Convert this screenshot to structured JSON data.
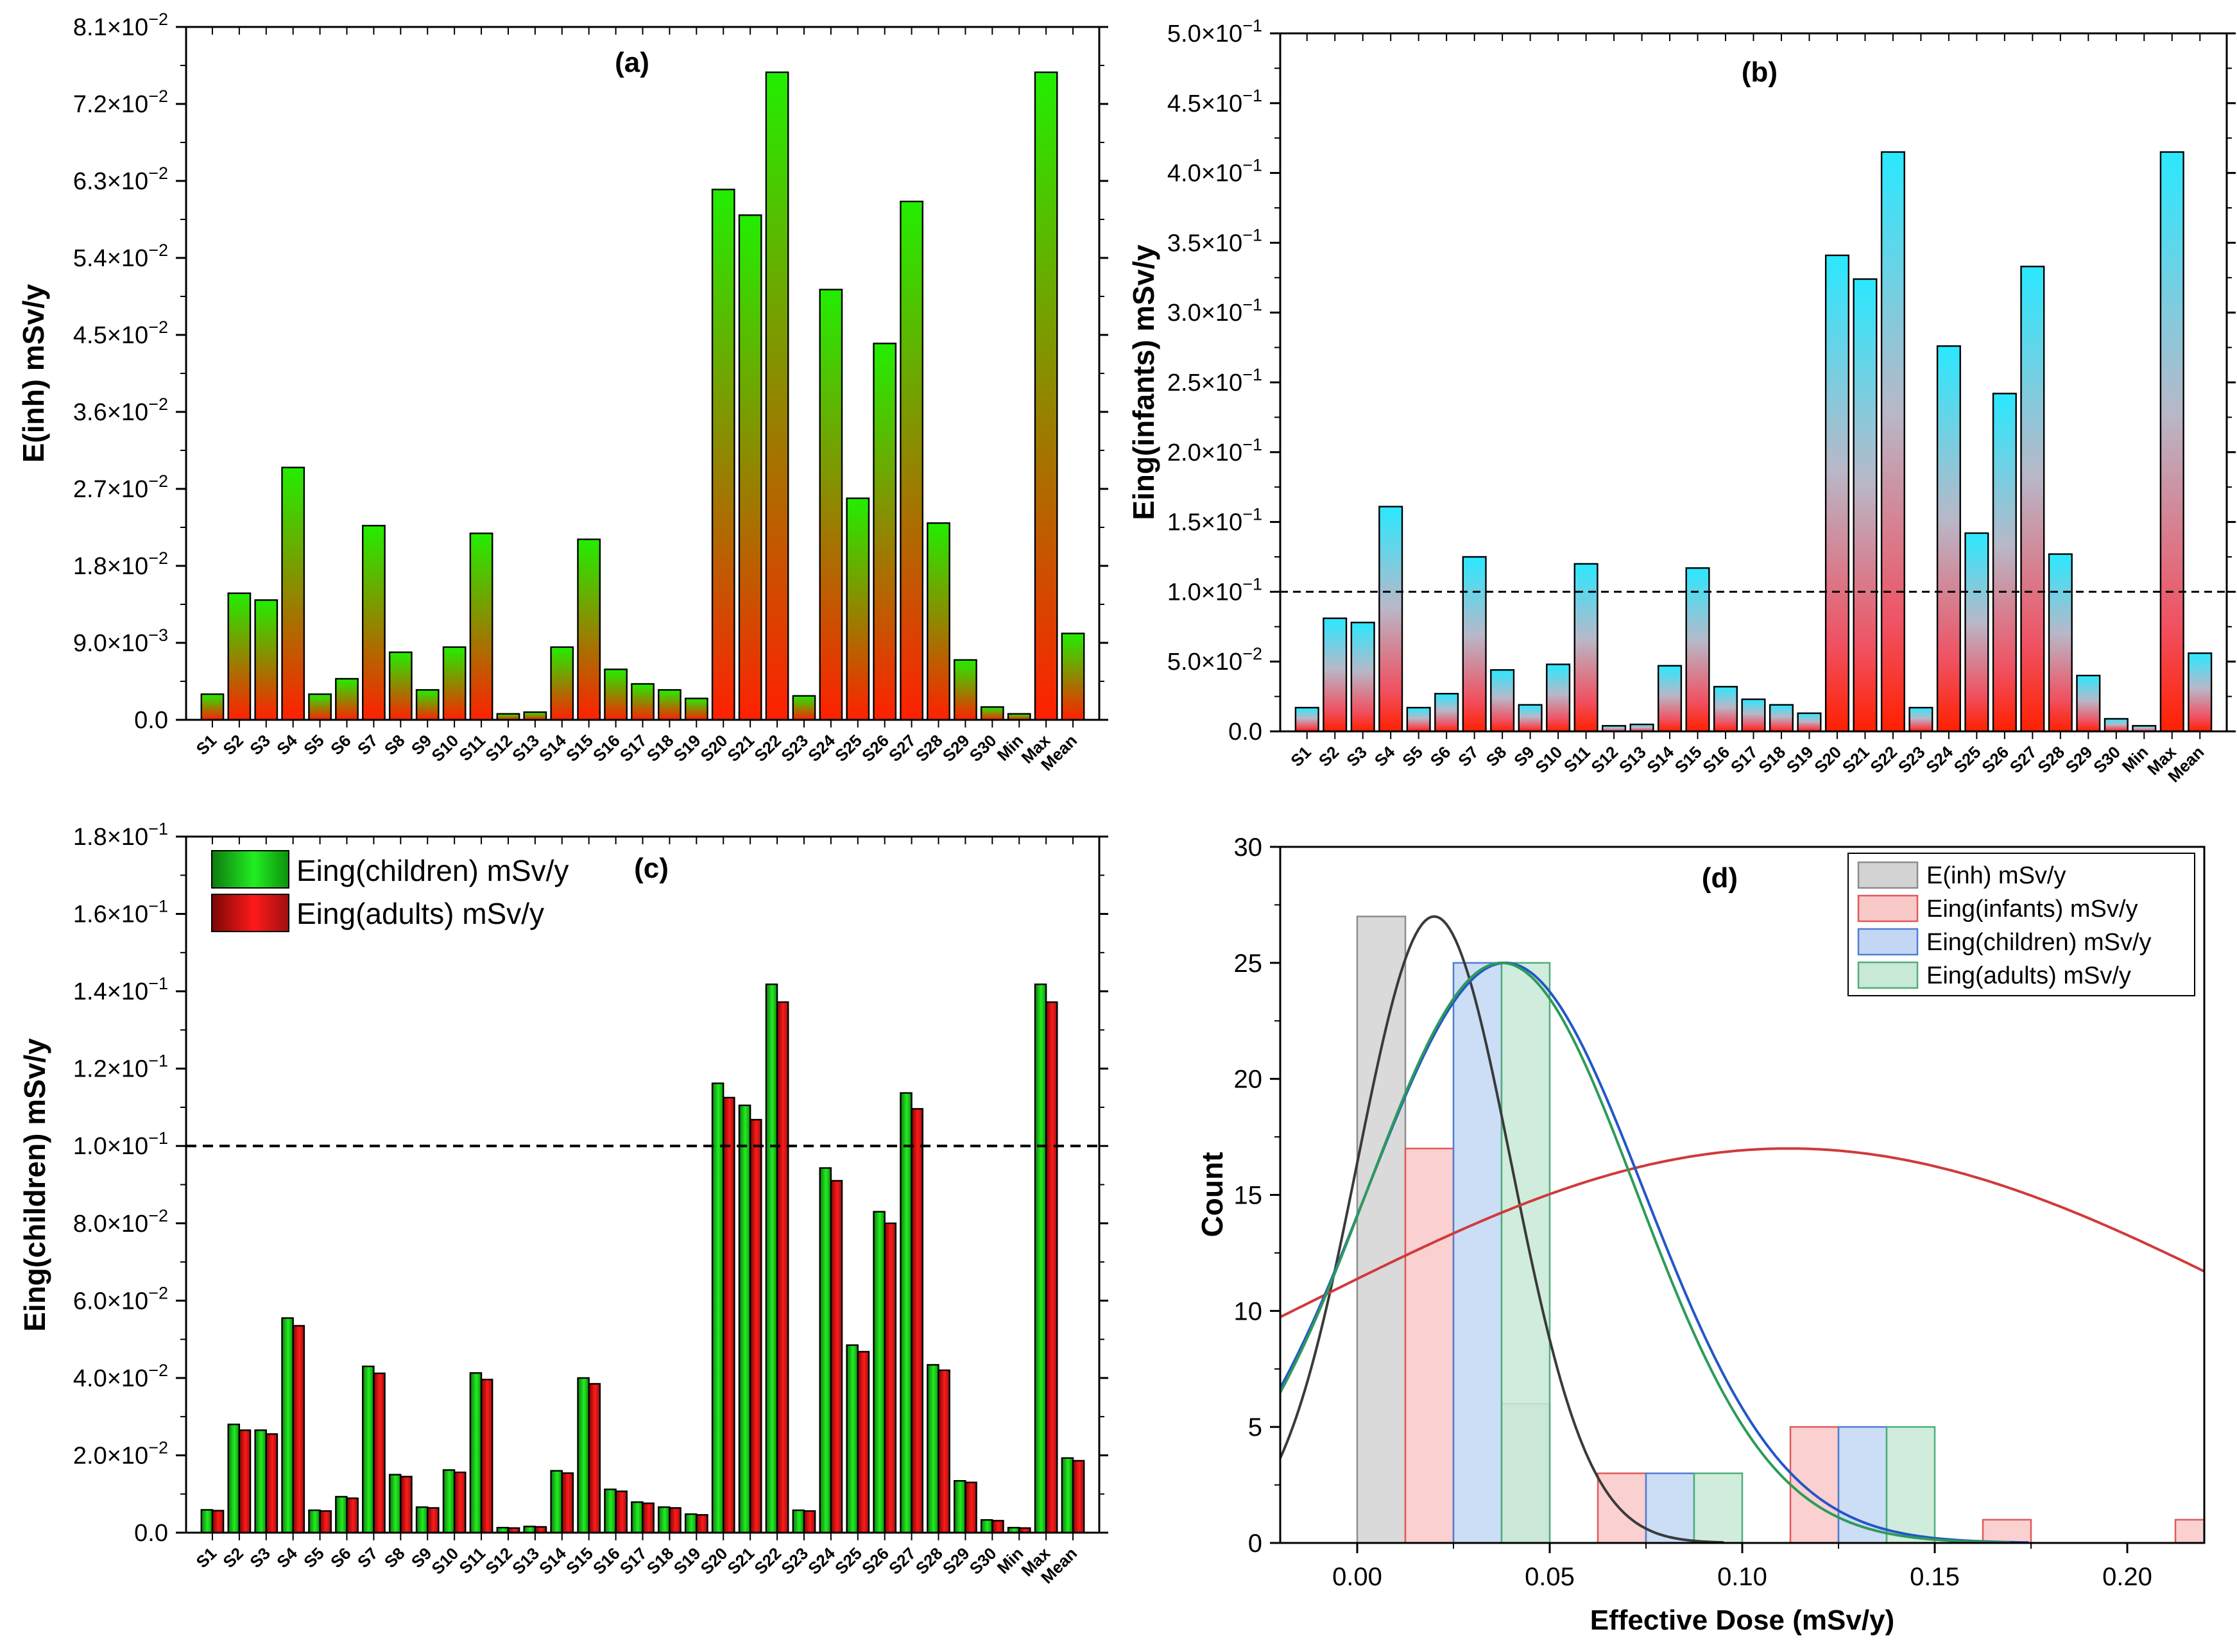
{
  "categories": [
    "S1",
    "S2",
    "S3",
    "S4",
    "S5",
    "S6",
    "S7",
    "S8",
    "S9",
    "S10",
    "S11",
    "S12",
    "S13",
    "S14",
    "S15",
    "S16",
    "S17",
    "S18",
    "S19",
    "S20",
    "S21",
    "S22",
    "S23",
    "S24",
    "S25",
    "S26",
    "S27",
    "S28",
    "S29",
    "S30",
    "Min",
    "Max",
    "Mean"
  ],
  "chart_data": [
    {
      "panel": "(a)",
      "type": "bar",
      "title": "(a)",
      "ylabel": "E(inh) mSv/y",
      "ylim": [
        0,
        0.081
      ],
      "yticks": [
        {
          "v": 0,
          "m": "0.0",
          "e": ""
        },
        {
          "v": 0.009,
          "m": "9.0×10",
          "e": "−3"
        },
        {
          "v": 0.018,
          "m": "1.8×10",
          "e": "−2"
        },
        {
          "v": 0.027,
          "m": "2.7×10",
          "e": "−2"
        },
        {
          "v": 0.036,
          "m": "3.6×10",
          "e": "−2"
        },
        {
          "v": 0.045,
          "m": "4.5×10",
          "e": "−2"
        },
        {
          "v": 0.054,
          "m": "5.4×10",
          "e": "−2"
        },
        {
          "v": 0.063,
          "m": "6.3×10",
          "e": "−2"
        },
        {
          "v": 0.072,
          "m": "7.2×10",
          "e": "−2"
        },
        {
          "v": 0.081,
          "m": "8.1×10",
          "e": "−2"
        }
      ],
      "series": [
        {
          "colors": [
            "#ff2000",
            "#22ee00"
          ],
          "values": [
            0.003,
            0.0148,
            0.014,
            0.0295,
            0.003,
            0.0048,
            0.0227,
            0.0079,
            0.0035,
            0.0085,
            0.0218,
            0.0007,
            0.0009,
            0.0085,
            0.0211,
            0.0059,
            0.0042,
            0.0035,
            0.0025,
            0.062,
            0.059,
            0.0757,
            0.0028,
            0.0503,
            0.0259,
            0.044,
            0.0606,
            0.023,
            0.007,
            0.0015,
            0.0007,
            0.0757,
            0.0101
          ]
        }
      ]
    },
    {
      "panel": "(b)",
      "type": "bar",
      "title": "(b)",
      "ylabel": "Eing(infants) mSv/y",
      "ylim": [
        0,
        0.5
      ],
      "reference_line": 0.1,
      "yticks": [
        {
          "v": 0,
          "m": "0.0",
          "e": ""
        },
        {
          "v": 0.05,
          "m": "5.0×10",
          "e": "−2"
        },
        {
          "v": 0.1,
          "m": "1.0×10",
          "e": "−1"
        },
        {
          "v": 0.15,
          "m": "1.5×10",
          "e": "−1"
        },
        {
          "v": 0.2,
          "m": "2.0×10",
          "e": "−1"
        },
        {
          "v": 0.25,
          "m": "2.5×10",
          "e": "−1"
        },
        {
          "v": 0.3,
          "m": "3.0×10",
          "e": "−1"
        },
        {
          "v": 0.35,
          "m": "3.5×10",
          "e": "−1"
        },
        {
          "v": 0.4,
          "m": "4.0×10",
          "e": "−1"
        },
        {
          "v": 0.45,
          "m": "4.5×10",
          "e": "−1"
        },
        {
          "v": 0.5,
          "m": "5.0×10",
          "e": "−1"
        }
      ],
      "series": [
        {
          "colors": [
            "#ff2000",
            "#2ae8ff"
          ],
          "values": [
            0.017,
            0.081,
            0.078,
            0.161,
            0.017,
            0.027,
            0.125,
            0.044,
            0.019,
            0.048,
            0.12,
            0.004,
            0.005,
            0.047,
            0.117,
            0.032,
            0.023,
            0.019,
            0.013,
            0.341,
            0.324,
            0.415,
            0.017,
            0.276,
            0.142,
            0.242,
            0.333,
            0.127,
            0.04,
            0.009,
            0.004,
            0.415,
            0.056
          ]
        }
      ]
    },
    {
      "panel": "(c)",
      "type": "bar",
      "title": "(c)",
      "ylabel": "Eing(children) mSv/y",
      "ylim": [
        0,
        0.18
      ],
      "reference_line": 0.1,
      "legend_position": "top-left",
      "yticks": [
        {
          "v": 0,
          "m": "0.0",
          "e": ""
        },
        {
          "v": 0.02,
          "m": "2.0×10",
          "e": "−2"
        },
        {
          "v": 0.04,
          "m": "4.0×10",
          "e": "−2"
        },
        {
          "v": 0.06,
          "m": "6.0×10",
          "e": "−2"
        },
        {
          "v": 0.08,
          "m": "8.0×10",
          "e": "−2"
        },
        {
          "v": 0.1,
          "m": "1.0×10",
          "e": "−1"
        },
        {
          "v": 0.12,
          "m": "1.2×10",
          "e": "−1"
        },
        {
          "v": 0.14,
          "m": "1.4×10",
          "e": "−1"
        },
        {
          "v": 0.16,
          "m": "1.6×10",
          "e": "−1"
        },
        {
          "v": 0.18,
          "m": "1.8×10",
          "e": "−1"
        }
      ],
      "series": [
        {
          "name": "Eing(children) mSv/y",
          "colors": [
            "#118a11",
            "#22ee22"
          ],
          "values": [
            0.0059,
            0.028,
            0.0265,
            0.0555,
            0.0058,
            0.0093,
            0.043,
            0.015,
            0.0066,
            0.0162,
            0.0413,
            0.0013,
            0.0016,
            0.016,
            0.04,
            0.0112,
            0.0079,
            0.0066,
            0.0048,
            0.1162,
            0.1105,
            0.1418,
            0.0058,
            0.0943,
            0.0485,
            0.083,
            0.1137,
            0.0434,
            0.0134,
            0.0033,
            0.0013,
            0.1418,
            0.0193
          ]
        },
        {
          "name": "Eing(adults) mSv/y",
          "colors": [
            "#8a0808",
            "#ff1a1a"
          ],
          "values": [
            0.0057,
            0.0265,
            0.0255,
            0.0535,
            0.0056,
            0.0089,
            0.0412,
            0.0145,
            0.0064,
            0.0156,
            0.0396,
            0.0012,
            0.0015,
            0.0154,
            0.0385,
            0.0107,
            0.0076,
            0.0064,
            0.0046,
            0.1125,
            0.1068,
            0.1372,
            0.0056,
            0.091,
            0.0468,
            0.08,
            0.1096,
            0.042,
            0.013,
            0.0031,
            0.0012,
            0.1372,
            0.0186
          ]
        }
      ]
    },
    {
      "panel": "(d)",
      "type": "histogram",
      "title": "(d)",
      "xlabel": "Effective Dose (mSv/y)",
      "ylabel": "Count",
      "xlim": [
        -0.02,
        0.22
      ],
      "ylim": [
        0,
        30
      ],
      "xticks": [
        "0.00",
        "0.05",
        "0.10",
        "0.15",
        "0.20"
      ],
      "yticks": [
        "0",
        "5",
        "10",
        "15",
        "20",
        "25",
        "30"
      ],
      "legend_position": "top-right",
      "series": [
        {
          "name": "E(inh) mSv/y",
          "fill": "#d3d3d3",
          "stroke": "#8c8c8c",
          "curve": "#3a3a3a",
          "bins": [
            [
              0.0,
              0.0125,
              27
            ],
            [
              0.0375,
              0.05,
              6
            ]
          ],
          "fit": {
            "mean": 0.02,
            "sd": 0.02,
            "peak": 27
          }
        },
        {
          "name": "Eing(infants) mSv/y",
          "fill": "#f9c8c8",
          "stroke": "#e05a5a",
          "curve": "#d03a3a",
          "bins": [
            [
              0.0125,
              0.025,
              17
            ],
            [
              0.0625,
              0.075,
              3
            ],
            [
              0.1125,
              0.125,
              5
            ],
            [
              0.1625,
              0.175,
              1
            ],
            [
              0.2125,
              0.225,
              1
            ]
          ],
          "fit": {
            "mean": 0.112,
            "sd": 0.125,
            "peak": 17
          }
        },
        {
          "name": "Eing(children) mSv/y",
          "fill": "#c3d7f4",
          "stroke": "#4f7fd0",
          "curve": "#2456c8",
          "bins": [
            [
              0.025,
              0.0375,
              25
            ],
            [
              0.075,
              0.0875,
              3
            ],
            [
              0.125,
              0.1375,
              5
            ]
          ],
          "fit": {
            "mean": 0.0385,
            "sd": 0.036,
            "peak": 25
          }
        },
        {
          "name": "Eing(adults) mSv/y",
          "fill": "#c8e9d6",
          "stroke": "#4fae7a",
          "curve": "#2e9a5a",
          "bins": [
            [
              0.0375,
              0.05,
              25
            ],
            [
              0.0875,
              0.1,
              3
            ],
            [
              0.1375,
              0.15,
              5
            ]
          ],
          "fit": {
            "mean": 0.0375,
            "sd": 0.035,
            "peak": 25
          }
        }
      ]
    }
  ]
}
